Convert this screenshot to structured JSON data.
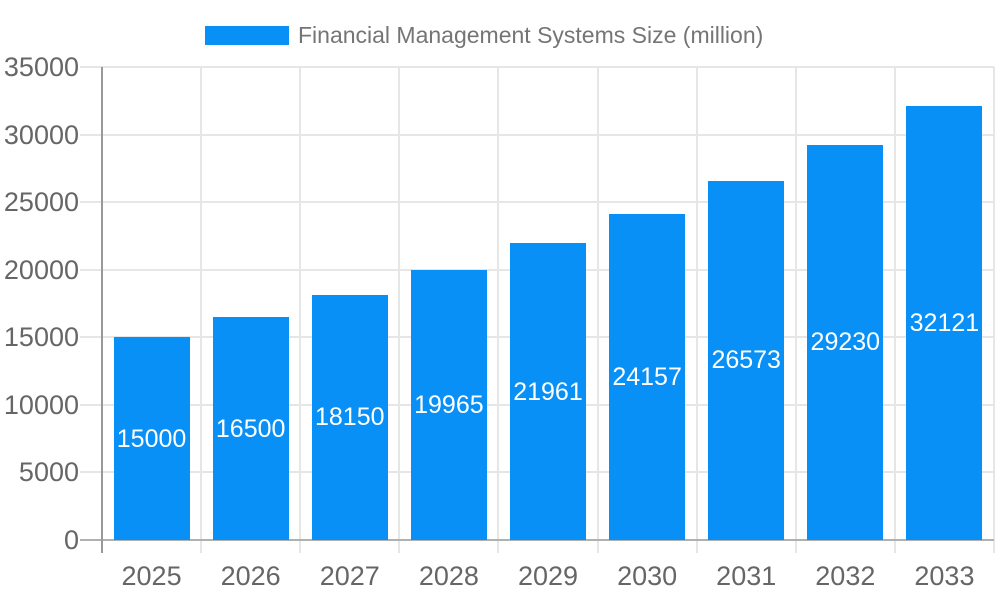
{
  "chart_data": {
    "type": "bar",
    "title": "Financial Management Systems Size (million)",
    "legend_position": "top",
    "categories": [
      "2025",
      "2026",
      "2027",
      "2028",
      "2029",
      "2030",
      "2031",
      "2032",
      "2033"
    ],
    "values": [
      15000,
      16500,
      18150,
      19965,
      21961,
      24157,
      26573,
      29230,
      32121
    ],
    "data_labels": [
      15000,
      16500,
      18150,
      19965,
      21961,
      24157,
      26573,
      29230,
      32121
    ],
    "data_label_style": "white, inside bar, vertically centered",
    "xlabel": "",
    "ylabel": "",
    "ylim": [
      0,
      35000
    ],
    "y_ticks": [
      0,
      5000,
      10000,
      15000,
      20000,
      25000,
      30000,
      35000
    ],
    "grid": "on",
    "colors": {
      "bar": "#0890f6",
      "data_label": "#ffffff",
      "gridline": "#e6e6e6",
      "baseline": "#b0b0b0",
      "axis_line": "#999999",
      "axis_text": "#666666",
      "legend_text": "#757575",
      "background": "#ffffff"
    }
  }
}
